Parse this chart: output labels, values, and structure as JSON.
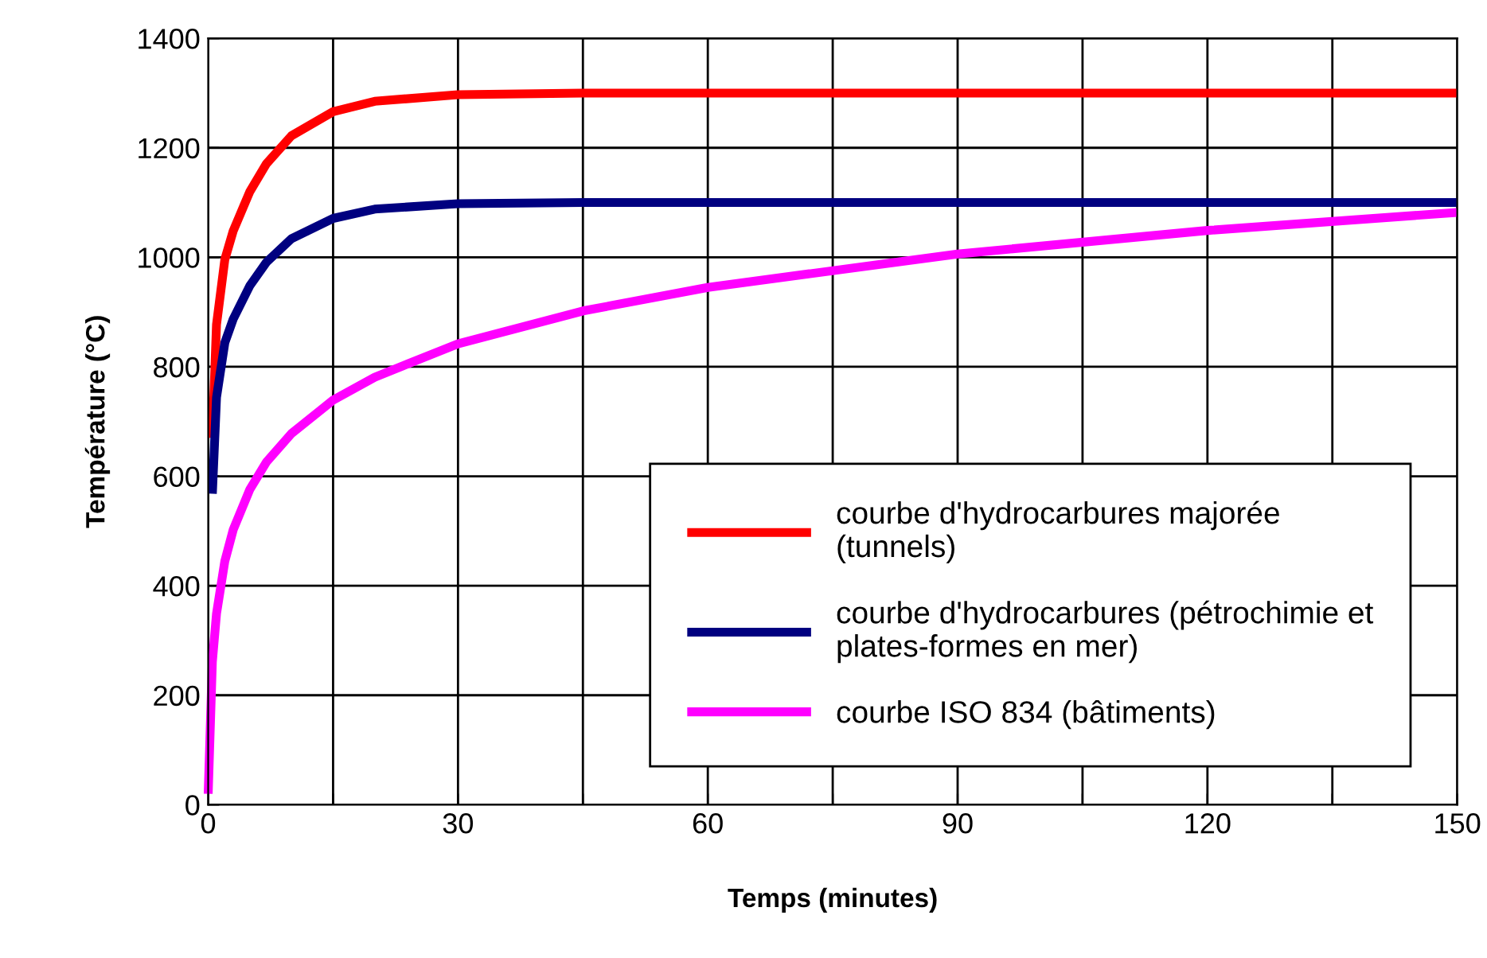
{
  "chart_data": {
    "type": "line",
    "xlabel": "Temps (minutes)",
    "ylabel": "Température (°C)",
    "xlim": [
      0,
      150
    ],
    "ylim": [
      0,
      1400
    ],
    "xticks": [
      0,
      {
        "value": 15,
        "label": null
      },
      30,
      {
        "value": 45,
        "label": null
      },
      60,
      {
        "value": 75,
        "label": null
      },
      90,
      {
        "value": 105,
        "label": null
      },
      120,
      {
        "value": 135,
        "label": null
      },
      150
    ],
    "yticks": [
      0,
      200,
      400,
      600,
      800,
      1000,
      1200,
      1400
    ],
    "grid": true,
    "legend": "lower right",
    "marker": "none",
    "line_style": "solid",
    "series": [
      {
        "name": "courbe d'hydrocarbures majorée\n(tunnels)",
        "color": "#ff0000",
        "x": [
          0.5,
          1,
          2,
          3,
          5,
          7,
          10,
          15,
          20,
          30,
          45,
          60,
          90,
          120,
          150
        ],
        "values": [
          670,
          877,
          996,
          1048,
          1120,
          1171,
          1222,
          1266,
          1285,
          1297,
          1300,
          1300,
          1300,
          1300,
          1300
        ]
      },
      {
        "name": "courbe d'hydrocarbures (pétrochimie et\nplates-formes en mer)",
        "color": "#000080",
        "x": [
          0.5,
          1,
          2,
          3,
          5,
          7,
          10,
          15,
          20,
          30,
          45,
          60,
          90,
          120,
          150
        ],
        "values": [
          568,
          744,
          844,
          887,
          948,
          991,
          1034,
          1071,
          1088,
          1098,
          1100,
          1100,
          1100,
          1100,
          1100
        ]
      },
      {
        "name": "courbe ISO 834 (bâtiments)",
        "color": "#ff00ff",
        "x": [
          0,
          0.5,
          1,
          2,
          3,
          5,
          7,
          10,
          15,
          20,
          30,
          45,
          60,
          90,
          120,
          150
        ],
        "values": [
          20,
          261,
          349,
          445,
          502,
          576,
          626,
          678,
          739,
          781,
          842,
          902,
          945,
          1006,
          1049,
          1082
        ]
      }
    ]
  }
}
